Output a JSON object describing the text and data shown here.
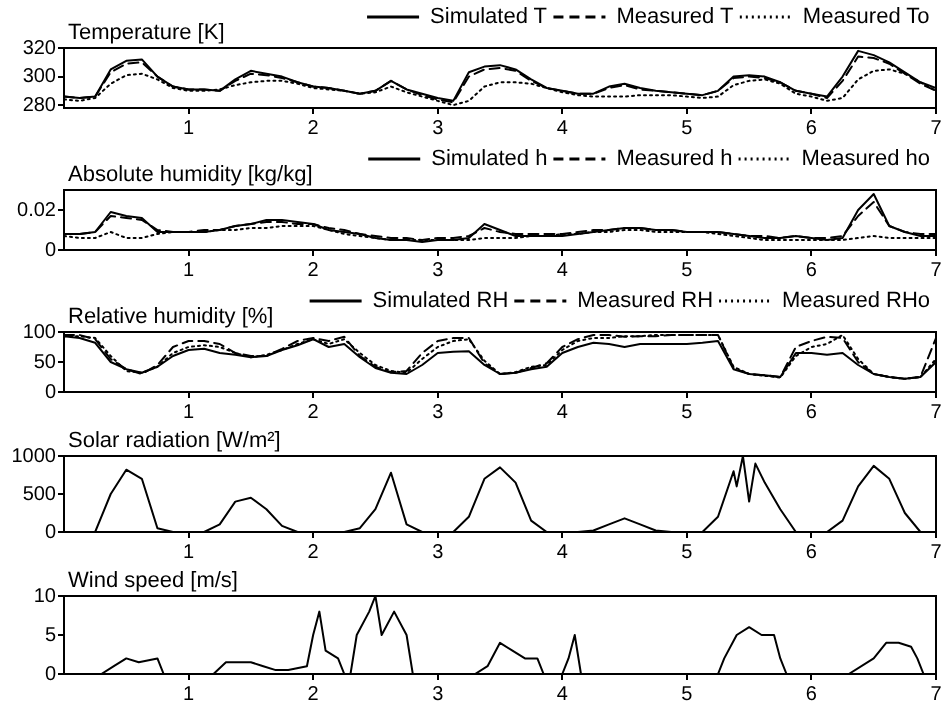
{
  "chart_data": [
    {
      "type": "line",
      "title": "Temperature [K]",
      "xlim": [
        0,
        7
      ],
      "xticks": [
        1,
        2,
        3,
        4,
        5,
        6,
        7
      ],
      "ylim": [
        278,
        320
      ],
      "yticks": [
        280,
        300,
        320
      ],
      "grid": false,
      "legend": "top right",
      "x": [
        0,
        0.125,
        0.25,
        0.375,
        0.5,
        0.625,
        0.75,
        0.875,
        1,
        1.125,
        1.25,
        1.375,
        1.5,
        1.625,
        1.75,
        1.875,
        2,
        2.125,
        2.25,
        2.375,
        2.5,
        2.625,
        2.75,
        2.875,
        3,
        3.125,
        3.25,
        3.375,
        3.5,
        3.625,
        3.75,
        3.875,
        4,
        4.125,
        4.25,
        4.375,
        4.5,
        4.625,
        4.75,
        4.875,
        5,
        5.125,
        5.25,
        5.375,
        5.5,
        5.625,
        5.75,
        5.875,
        6,
        6.125,
        6.25,
        6.375,
        6.5,
        6.625,
        6.75,
        6.875,
        7
      ],
      "series": [
        {
          "name": "Simulated T",
          "color": "#000000",
          "line_style": "solid",
          "values": [
            286,
            285,
            286,
            305,
            311,
            312,
            300,
            293,
            291,
            291,
            290,
            298,
            304,
            302,
            300,
            296,
            293,
            292,
            290,
            288,
            290,
            297,
            291,
            288,
            285,
            283,
            303,
            307,
            308,
            305,
            298,
            292,
            290,
            288,
            288,
            293,
            295,
            292,
            290,
            289,
            288,
            287,
            290,
            300,
            301,
            300,
            296,
            290,
            288,
            286,
            300,
            318,
            315,
            310,
            303,
            296,
            292
          ]
        },
        {
          "name": "Measured T",
          "color": "#000000",
          "line_style": "dashed",
          "values": [
            286,
            285,
            286,
            303,
            309,
            310,
            300,
            293,
            291,
            291,
            290,
            297,
            302,
            301,
            299,
            296,
            293,
            292,
            290,
            288,
            290,
            297,
            291,
            287,
            284,
            282,
            300,
            305,
            306,
            304,
            297,
            292,
            290,
            288,
            288,
            292,
            294,
            291,
            290,
            289,
            288,
            287,
            290,
            299,
            300,
            299,
            296,
            290,
            288,
            285,
            297,
            314,
            313,
            309,
            302,
            295,
            290
          ]
        },
        {
          "name": "Measured To",
          "color": "#000000",
          "line_style": "dotted",
          "values": [
            284,
            283,
            285,
            295,
            301,
            302,
            298,
            292,
            290,
            290,
            291,
            294,
            296,
            297,
            297,
            295,
            292,
            291,
            290,
            288,
            289,
            293,
            289,
            286,
            283,
            280,
            283,
            293,
            296,
            296,
            295,
            292,
            289,
            287,
            286,
            286,
            286,
            287,
            287,
            287,
            286,
            285,
            286,
            294,
            297,
            298,
            295,
            288,
            286,
            283,
            285,
            298,
            304,
            305,
            302,
            296,
            290
          ]
        }
      ]
    },
    {
      "type": "line",
      "title": "Absolute humidity [kg/kg]",
      "xlim": [
        0,
        7
      ],
      "xticks": [
        1,
        2,
        3,
        4,
        5,
        6,
        7
      ],
      "ylim": [
        0,
        0.03
      ],
      "yticks": [
        0,
        0.02
      ],
      "grid": false,
      "legend": "top right",
      "x": [
        0,
        0.125,
        0.25,
        0.375,
        0.5,
        0.625,
        0.75,
        0.875,
        1,
        1.125,
        1.25,
        1.375,
        1.5,
        1.625,
        1.75,
        1.875,
        2,
        2.125,
        2.25,
        2.375,
        2.5,
        2.625,
        2.75,
        2.875,
        3,
        3.125,
        3.25,
        3.375,
        3.5,
        3.625,
        3.75,
        3.875,
        4,
        4.125,
        4.25,
        4.375,
        4.5,
        4.625,
        4.75,
        4.875,
        5,
        5.125,
        5.25,
        5.375,
        5.5,
        5.625,
        5.75,
        5.875,
        6,
        6.125,
        6.25,
        6.375,
        6.5,
        6.625,
        6.75,
        6.875,
        7
      ],
      "series": [
        {
          "name": "Simulated h",
          "color": "#000000",
          "line_style": "solid",
          "values": [
            0.008,
            0.008,
            0.009,
            0.019,
            0.017,
            0.016,
            0.009,
            0.009,
            0.009,
            0.009,
            0.01,
            0.012,
            0.013,
            0.015,
            0.015,
            0.014,
            0.013,
            0.01,
            0.009,
            0.008,
            0.006,
            0.005,
            0.005,
            0.004,
            0.005,
            0.005,
            0.006,
            0.013,
            0.01,
            0.007,
            0.007,
            0.007,
            0.007,
            0.008,
            0.009,
            0.01,
            0.011,
            0.011,
            0.01,
            0.01,
            0.009,
            0.009,
            0.009,
            0.008,
            0.007,
            0.006,
            0.006,
            0.007,
            0.006,
            0.005,
            0.006,
            0.02,
            0.028,
            0.012,
            0.009,
            0.007,
            0.007
          ]
        },
        {
          "name": "Measured h",
          "color": "#000000",
          "line_style": "dashed",
          "values": [
            0.008,
            0.008,
            0.009,
            0.017,
            0.016,
            0.015,
            0.01,
            0.009,
            0.009,
            0.01,
            0.01,
            0.012,
            0.013,
            0.014,
            0.014,
            0.013,
            0.013,
            0.011,
            0.01,
            0.008,
            0.007,
            0.006,
            0.006,
            0.005,
            0.006,
            0.006,
            0.007,
            0.011,
            0.009,
            0.008,
            0.008,
            0.008,
            0.008,
            0.009,
            0.01,
            0.01,
            0.011,
            0.011,
            0.01,
            0.01,
            0.009,
            0.009,
            0.009,
            0.008,
            0.007,
            0.007,
            0.006,
            0.007,
            0.006,
            0.006,
            0.007,
            0.017,
            0.024,
            0.012,
            0.009,
            0.008,
            0.008
          ]
        },
        {
          "name": "Measured ho",
          "color": "#000000",
          "line_style": "dotted",
          "values": [
            0.007,
            0.006,
            0.006,
            0.009,
            0.006,
            0.006,
            0.008,
            0.009,
            0.009,
            0.009,
            0.01,
            0.01,
            0.011,
            0.011,
            0.012,
            0.012,
            0.012,
            0.01,
            0.008,
            0.007,
            0.006,
            0.005,
            0.005,
            0.005,
            0.005,
            0.005,
            0.005,
            0.006,
            0.006,
            0.006,
            0.007,
            0.007,
            0.008,
            0.008,
            0.009,
            0.009,
            0.01,
            0.01,
            0.009,
            0.009,
            0.009,
            0.009,
            0.008,
            0.007,
            0.006,
            0.005,
            0.005,
            0.005,
            0.005,
            0.005,
            0.005,
            0.006,
            0.007,
            0.006,
            0.006,
            0.006,
            0.006
          ]
        }
      ]
    },
    {
      "type": "line",
      "title": "Relative humidity [%]",
      "xlim": [
        0,
        7
      ],
      "xticks": [
        1,
        2,
        3,
        4,
        5,
        6,
        7
      ],
      "ylim": [
        0,
        100
      ],
      "yticks": [
        0,
        50,
        100
      ],
      "grid": false,
      "legend": "top right",
      "x": [
        0,
        0.125,
        0.25,
        0.375,
        0.5,
        0.625,
        0.75,
        0.875,
        1,
        1.125,
        1.25,
        1.375,
        1.5,
        1.625,
        1.75,
        1.875,
        2,
        2.125,
        2.25,
        2.375,
        2.5,
        2.625,
        2.75,
        2.875,
        3,
        3.125,
        3.25,
        3.375,
        3.5,
        3.625,
        3.75,
        3.875,
        4,
        4.125,
        4.25,
        4.375,
        4.5,
        4.625,
        4.75,
        4.875,
        5,
        5.125,
        5.25,
        5.375,
        5.5,
        5.625,
        5.75,
        5.875,
        6,
        6.125,
        6.25,
        6.375,
        6.5,
        6.625,
        6.75,
        6.875,
        7
      ],
      "series": [
        {
          "name": "Simulated RH",
          "color": "#000000",
          "line_style": "solid",
          "values": [
            93,
            90,
            82,
            50,
            38,
            32,
            42,
            60,
            70,
            72,
            65,
            62,
            58,
            60,
            70,
            78,
            88,
            75,
            80,
            58,
            40,
            32,
            30,
            45,
            65,
            67,
            68,
            45,
            30,
            32,
            38,
            42,
            65,
            75,
            82,
            80,
            75,
            80,
            80,
            80,
            80,
            82,
            85,
            38,
            30,
            28,
            25,
            65,
            65,
            62,
            65,
            45,
            30,
            25,
            22,
            25,
            50
          ]
        },
        {
          "name": "Measured RH",
          "color": "#000000",
          "line_style": "dashed",
          "values": [
            95,
            95,
            88,
            55,
            38,
            30,
            45,
            75,
            85,
            85,
            80,
            65,
            60,
            60,
            72,
            85,
            90,
            85,
            92,
            60,
            42,
            33,
            35,
            65,
            85,
            90,
            90,
            48,
            30,
            32,
            40,
            48,
            75,
            88,
            95,
            95,
            92,
            93,
            93,
            95,
            95,
            95,
            95,
            40,
            30,
            28,
            25,
            75,
            85,
            92,
            90,
            50,
            30,
            25,
            22,
            25,
            90
          ]
        },
        {
          "name": "Measured RHo",
          "color": "#000000",
          "line_style": "dotted",
          "values": [
            93,
            93,
            90,
            60,
            35,
            32,
            42,
            65,
            75,
            78,
            75,
            65,
            58,
            62,
            70,
            80,
            88,
            80,
            88,
            65,
            45,
            35,
            32,
            55,
            75,
            85,
            88,
            52,
            30,
            33,
            42,
            45,
            70,
            85,
            90,
            90,
            93,
            93,
            95,
            95,
            95,
            95,
            95,
            42,
            30,
            27,
            24,
            60,
            75,
            80,
            95,
            55,
            30,
            25,
            22,
            25,
            55
          ]
        }
      ]
    },
    {
      "type": "line",
      "title": "Solar radiation [W/m²]",
      "xlim": [
        0,
        7
      ],
      "xticks": [
        1,
        2,
        3,
        4,
        5,
        6,
        7
      ],
      "ylim": [
        0,
        1000
      ],
      "yticks": [
        0,
        500,
        1000
      ],
      "grid": false,
      "x": [
        0,
        0.125,
        0.25,
        0.375,
        0.5,
        0.625,
        0.75,
        0.875,
        1,
        1.125,
        1.25,
        1.375,
        1.5,
        1.625,
        1.75,
        1.875,
        2,
        2.125,
        2.25,
        2.375,
        2.5,
        2.625,
        2.75,
        2.875,
        3,
        3.125,
        3.25,
        3.375,
        3.5,
        3.625,
        3.75,
        3.875,
        4,
        4.125,
        4.25,
        4.375,
        4.5,
        4.625,
        4.75,
        4.875,
        5,
        5.125,
        5.25,
        5.375,
        5.4,
        5.45,
        5.5,
        5.55,
        5.625,
        5.75,
        5.875,
        6,
        6.125,
        6.25,
        6.375,
        6.5,
        6.625,
        6.75,
        6.875,
        7
      ],
      "series": [
        {
          "color": "#000000",
          "line_style": "solid",
          "values": [
            0,
            0,
            0,
            500,
            820,
            700,
            50,
            0,
            0,
            0,
            100,
            400,
            450,
            300,
            80,
            0,
            0,
            0,
            0,
            50,
            300,
            780,
            100,
            0,
            0,
            0,
            200,
            700,
            850,
            650,
            150,
            0,
            0,
            0,
            20,
            100,
            180,
            100,
            20,
            0,
            0,
            0,
            200,
            800,
            600,
            1000,
            400,
            900,
            650,
            300,
            0,
            0,
            0,
            150,
            600,
            870,
            700,
            250,
            0,
            0
          ]
        }
      ]
    },
    {
      "type": "line",
      "title": "Wind speed [m/s]",
      "xlim": [
        0,
        7
      ],
      "xticks": [
        1,
        2,
        3,
        4,
        5,
        6,
        7
      ],
      "ylim": [
        0,
        10
      ],
      "yticks": [
        0,
        5,
        10
      ],
      "grid": false,
      "x": [
        0,
        0.3,
        0.4,
        0.5,
        0.6,
        0.75,
        0.8,
        1.2,
        1.3,
        1.5,
        1.6,
        1.7,
        1.8,
        1.95,
        2.0,
        2.05,
        2.1,
        2.2,
        2.25,
        2.3,
        2.35,
        2.45,
        2.5,
        2.55,
        2.65,
        2.75,
        2.8,
        3.3,
        3.4,
        3.5,
        3.6,
        3.7,
        3.8,
        3.85,
        4.0,
        4.05,
        4.1,
        4.15,
        4.3,
        5.25,
        5.3,
        5.4,
        5.5,
        5.6,
        5.7,
        5.75,
        5.8,
        6.3,
        6.5,
        6.6,
        6.7,
        6.8,
        6.85,
        6.9,
        7
      ],
      "series": [
        {
          "color": "#000000",
          "line_style": "solid",
          "values": [
            0,
            0,
            1,
            2,
            1.5,
            2,
            0,
            0,
            1.5,
            1.5,
            1,
            0.5,
            0.5,
            1,
            5,
            8,
            3,
            2,
            0,
            0,
            5,
            8,
            10,
            5,
            8,
            5,
            0,
            0,
            1,
            4,
            3,
            2,
            2,
            0,
            0,
            2,
            5,
            0,
            0,
            0,
            2,
            5,
            6,
            5,
            5,
            2,
            0,
            0,
            2,
            4,
            4,
            3.5,
            2,
            0,
            0
          ]
        }
      ]
    }
  ]
}
